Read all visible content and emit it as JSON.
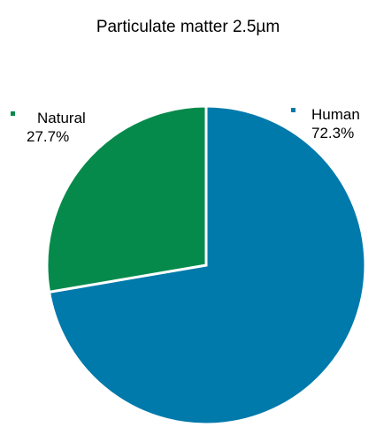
{
  "chart_data": {
    "type": "pie",
    "title": "Particulate matter 2.5µm",
    "slices": [
      {
        "label": "Human",
        "value": 72.3,
        "value_label": "72.3%",
        "color": "#0079ab"
      },
      {
        "label": "Natural",
        "value": 27.7,
        "value_label": "27.7%",
        "color": "#068a4b"
      }
    ],
    "start_angle_deg": 0,
    "direction": "clockwise"
  }
}
